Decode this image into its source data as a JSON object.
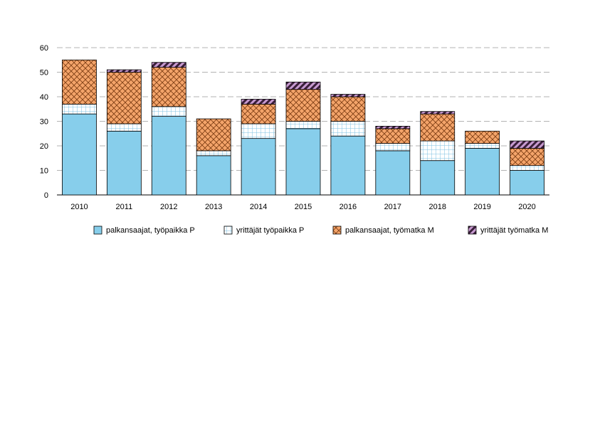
{
  "chart_data": {
    "type": "bar",
    "stacked": true,
    "title": "",
    "xlabel": "",
    "ylabel": "",
    "ylim": [
      0,
      60
    ],
    "yticks": [
      0,
      10,
      20,
      30,
      40,
      50,
      60
    ],
    "grid": "horizontal dashed",
    "legend_placement": "bottom",
    "categories": [
      "2010",
      "2011",
      "2012",
      "2013",
      "2014",
      "2015",
      "2016",
      "2017",
      "2018",
      "2019",
      "2020"
    ],
    "series": [
      {
        "name": "palkansaajat, työpaikka P",
        "pattern": "solid",
        "color": "#87CEEB",
        "values": [
          33,
          26,
          32,
          16,
          23,
          27,
          24,
          18,
          14,
          19,
          10
        ]
      },
      {
        "name": "yrittäjät työpaikka P",
        "pattern": "grid",
        "color": "#87CEEB",
        "values": [
          4,
          3,
          4,
          2,
          6,
          3,
          6,
          3,
          8,
          2,
          2
        ]
      },
      {
        "name": "palkansaajat, työmatka M",
        "pattern": "crosshatch",
        "color": "#F4A46A",
        "values": [
          18,
          21,
          16,
          13,
          8,
          13,
          10,
          6,
          11,
          5,
          7
        ]
      },
      {
        "name": "yrittäjät työmatka M",
        "pattern": "diagonal",
        "color": "#B07AB0",
        "values": [
          0,
          1,
          2,
          0,
          2,
          3,
          1,
          1,
          1,
          0,
          3
        ]
      }
    ]
  }
}
